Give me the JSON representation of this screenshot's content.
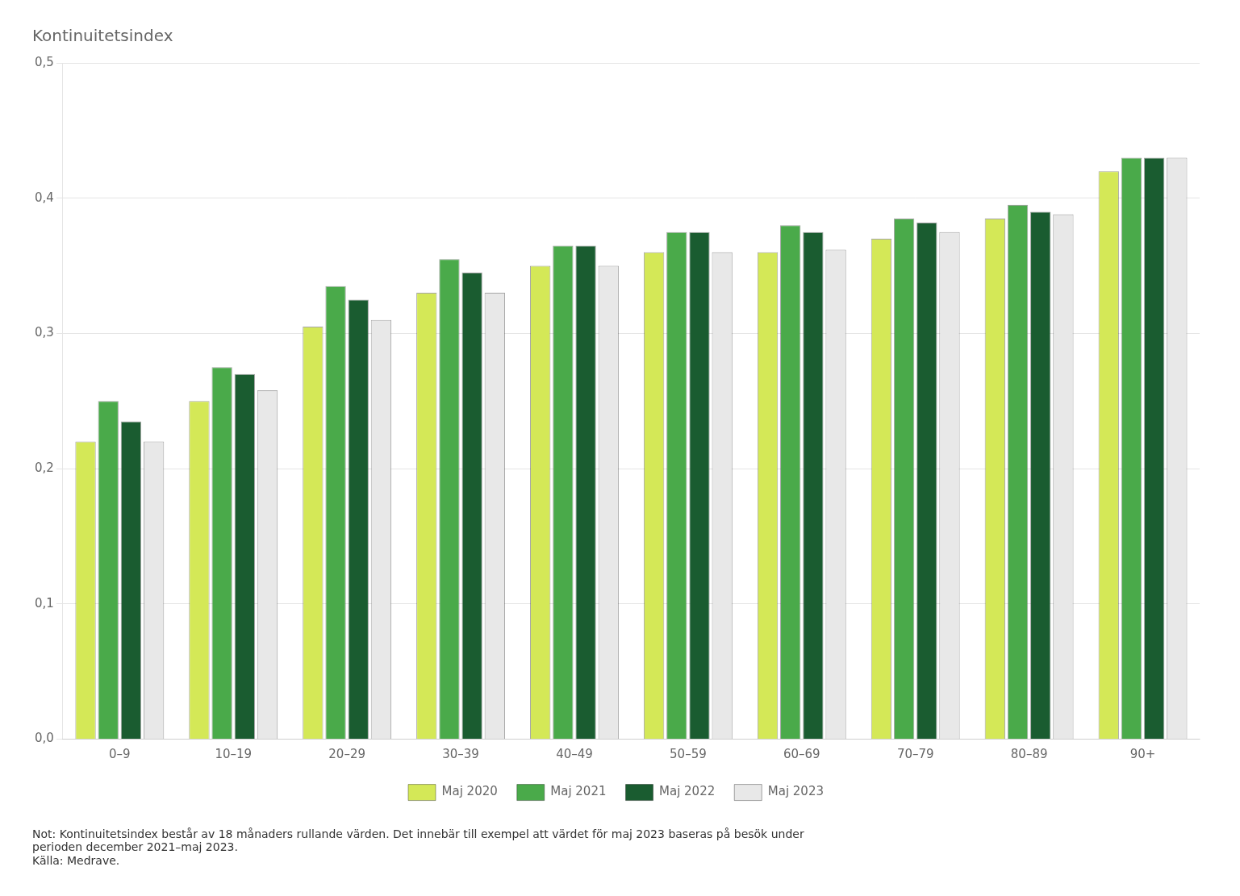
{
  "chart_data": {
    "type": "bar",
    "title": "Kontinuitetsindex",
    "categories": [
      "0–9",
      "10–19",
      "20–29",
      "30–39",
      "40–49",
      "50–59",
      "60–69",
      "70–79",
      "80–89",
      "90+"
    ],
    "series": [
      {
        "name": "Maj 2020",
        "color": "#d4e857",
        "values": [
          0.22,
          0.25,
          0.305,
          0.33,
          0.35,
          0.36,
          0.36,
          0.37,
          0.385,
          0.42
        ]
      },
      {
        "name": "Maj 2021",
        "color": "#4aaa4a",
        "values": [
          0.25,
          0.275,
          0.335,
          0.355,
          0.365,
          0.375,
          0.38,
          0.385,
          0.395,
          0.43
        ]
      },
      {
        "name": "Maj 2022",
        "color": "#1a5c30",
        "values": [
          0.235,
          0.27,
          0.325,
          0.345,
          0.365,
          0.375,
          0.375,
          0.382,
          0.39,
          0.43
        ]
      },
      {
        "name": "Maj 2023",
        "color": "#e8e8e8",
        "values": [
          0.22,
          0.258,
          0.31,
          0.33,
          0.35,
          0.36,
          0.362,
          0.375,
          0.388,
          0.43
        ]
      }
    ],
    "ylim": [
      0.0,
      0.5
    ],
    "yticks": [
      {
        "value": 0.0,
        "label": "0,0"
      },
      {
        "value": 0.1,
        "label": "0,1"
      },
      {
        "value": 0.2,
        "label": "0,2"
      },
      {
        "value": 0.3,
        "label": "0,3"
      },
      {
        "value": 0.4,
        "label": "0,4"
      },
      {
        "value": 0.5,
        "label": "0,5"
      }
    ],
    "grid": true,
    "legend": "bottom",
    "annotations": [
      "Not: Kontinuitetsindex består av 18 månaders rullande värden. Det innebär till exempel att värdet för maj 2023 baseras på besök under",
      "perioden december 2021–maj 2023.",
      "Källa: Medrave."
    ]
  }
}
